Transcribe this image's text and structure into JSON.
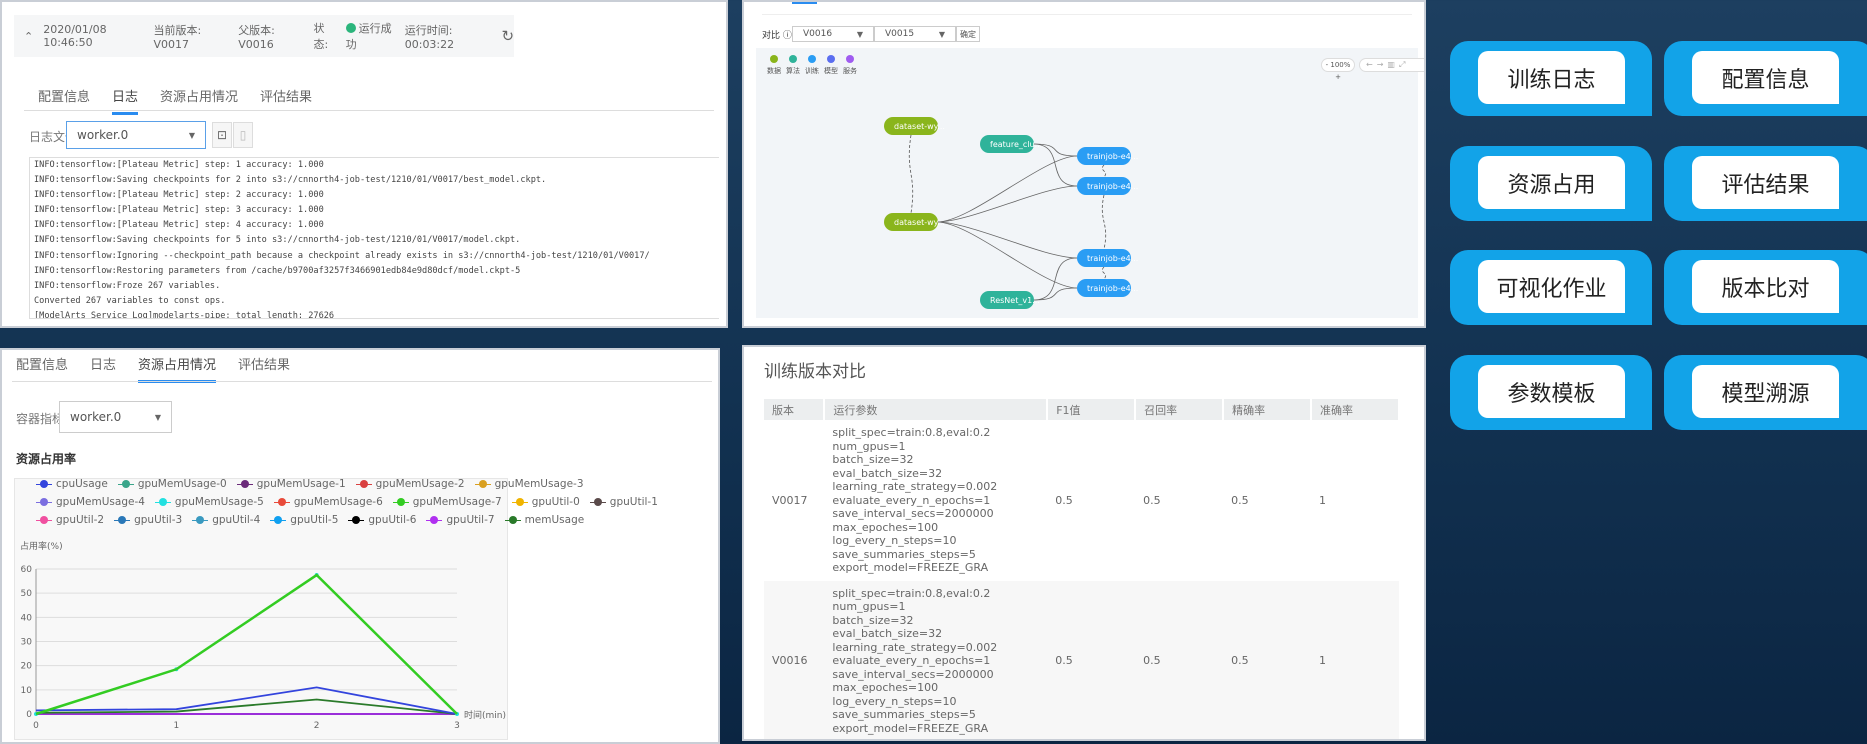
{
  "log_panel": {
    "header": {
      "datetime": "2020/01/08 10:46:50",
      "current_version": "当前版本: V0017",
      "parent_version": "父版本: V0016",
      "status_label": "状态:",
      "status_value": "运行成功",
      "runtime": "运行时间: 00:03:22"
    },
    "tabs": [
      "配置信息",
      "日志",
      "资源占用情况",
      "评估结果"
    ],
    "active_tab": 1,
    "log_file_label": "日志文件",
    "log_file_value": "worker.0",
    "lines": [
      "INFO:tensorflow:[Plateau Metric] step: 1 accuracy: 1.000",
      "INFO:tensorflow:Saving checkpoints for 2 into s3://cnnorth4-job-test/1210/01/V0017/best_model.ckpt.",
      "INFO:tensorflow:[Plateau Metric] step: 2 accuracy: 1.000",
      "INFO:tensorflow:[Plateau Metric] step: 3 accuracy: 1.000",
      "INFO:tensorflow:[Plateau Metric] step: 4 accuracy: 1.000",
      "INFO:tensorflow:Saving checkpoints for 5 into s3://cnnorth4-job-test/1210/01/V0017/model.ckpt.",
      "INFO:tensorflow:Ignoring --checkpoint_path because a checkpoint already exists in s3://cnnorth4-job-test/1210/01/V0017/",
      "INFO:tensorflow:Restoring parameters from /cache/b9700af3257f3466901edb84e9d80dcf/model.ckpt-5",
      "INFO:tensorflow:Froze 267 variables.",
      "Converted 267 variables to const ops.",
      "[ModelArts Service Log]modelarts-pipe: total length: 27626"
    ]
  },
  "lineage_panel": {
    "compare_label": "对比 ⓘ",
    "version_a": "V0016",
    "version_b": "V0015",
    "confirm": "确定",
    "legend": [
      {
        "label": "数据",
        "color": "#8ab51c"
      },
      {
        "label": "算法",
        "color": "#2fb39a"
      },
      {
        "label": "训练",
        "color": "#2a9df4"
      },
      {
        "label": "模型",
        "color": "#5b6ef0"
      },
      {
        "label": "服务",
        "color": "#a05cf0"
      }
    ],
    "zoom": "100%",
    "nodes": [
      {
        "id": "d1",
        "label": "dataset-wy...",
        "type": "data"
      },
      {
        "id": "d2",
        "label": "dataset-wy...",
        "type": "data"
      },
      {
        "id": "a1",
        "label": "feature_clu...",
        "type": "algo"
      },
      {
        "id": "a2",
        "label": "ResNet_v1...",
        "type": "algo"
      },
      {
        "id": "t1",
        "label": "trainjob-e4...",
        "type": "train"
      },
      {
        "id": "t2",
        "label": "trainjob-e4...",
        "type": "train"
      },
      {
        "id": "t3",
        "label": "trainjob-e4...",
        "type": "train"
      },
      {
        "id": "t4",
        "label": "trainjob-e4...",
        "type": "train"
      }
    ],
    "edges": [
      [
        "d2",
        "t1"
      ],
      [
        "d2",
        "t2"
      ],
      [
        "d2",
        "t3"
      ],
      [
        "d2",
        "t4"
      ],
      [
        "a1",
        "t1"
      ],
      [
        "a1",
        "t2"
      ],
      [
        "a2",
        "t3"
      ],
      [
        "a2",
        "t4"
      ]
    ],
    "dashed_edges": [
      [
        "d1",
        "d2"
      ],
      [
        "t1",
        "t2"
      ],
      [
        "t2",
        "t3"
      ],
      [
        "t3",
        "t4"
      ]
    ]
  },
  "resource_panel": {
    "tabs": [
      "配置信息",
      "日志",
      "资源占用情况",
      "评估结果"
    ],
    "active_tab": 2,
    "container_label": "容器指标",
    "container_value": "worker.0",
    "section_title": "资源占用率",
    "chart_data": {
      "type": "line",
      "ylabel": "占用率(%)",
      "xlabel": "时间(min)",
      "x": [
        0,
        1,
        2,
        3
      ],
      "xlim": [
        0,
        3
      ],
      "ylim": [
        0,
        60
      ],
      "yticks": [
        0,
        10,
        20,
        30,
        40,
        50,
        60
      ],
      "grid": true,
      "legend_position": "top",
      "series": [
        {
          "name": "cpuUsage",
          "color": "#3344dd",
          "values": [
            1.5,
            2,
            11,
            0
          ]
        },
        {
          "name": "gpuMemUsage-0",
          "color": "#3aa58a",
          "values": [
            0,
            0,
            0,
            0
          ]
        },
        {
          "name": "gpuMemUsage-1",
          "color": "#6b2a7a",
          "values": [
            0,
            0,
            0,
            0
          ]
        },
        {
          "name": "gpuMemUsage-2",
          "color": "#d94040",
          "values": [
            0,
            0,
            0,
            0
          ]
        },
        {
          "name": "gpuMemUsage-3",
          "color": "#d9a020",
          "values": [
            0,
            0,
            0,
            0
          ]
        },
        {
          "name": "gpuMemUsage-4",
          "color": "#7b6ee0",
          "values": [
            0,
            0,
            0,
            0
          ]
        },
        {
          "name": "gpuMemUsage-5",
          "color": "#22e0e0",
          "values": [
            0,
            18.5,
            57.5,
            0
          ]
        },
        {
          "name": "gpuMemUsage-6",
          "color": "#e84a3a",
          "values": [
            0,
            0,
            0,
            0
          ]
        },
        {
          "name": "gpuMemUsage-7",
          "color": "#33cc22",
          "values": [
            0,
            18.5,
            57.5,
            0
          ]
        },
        {
          "name": "gpuUtil-0",
          "color": "#f0b400",
          "values": [
            0,
            0,
            0,
            0
          ]
        },
        {
          "name": "gpuUtil-1",
          "color": "#5a4a4a",
          "values": [
            0,
            0,
            0,
            0
          ]
        },
        {
          "name": "gpuUtil-2",
          "color": "#f050a0",
          "values": [
            0,
            0,
            0,
            0
          ]
        },
        {
          "name": "gpuUtil-3",
          "color": "#2a78b8",
          "values": [
            0,
            0,
            0,
            0
          ]
        },
        {
          "name": "gpuUtil-4",
          "color": "#3a9ac0",
          "values": [
            0,
            0,
            0,
            0
          ]
        },
        {
          "name": "gpuUtil-5",
          "color": "#10a0f0",
          "values": [
            0,
            0,
            0,
            0
          ]
        },
        {
          "name": "gpuUtil-6",
          "color": "#000000",
          "values": [
            0,
            0,
            0,
            0
          ]
        },
        {
          "name": "gpuUtil-7",
          "color": "#b030f0",
          "values": [
            0,
            0,
            0,
            0
          ]
        },
        {
          "name": "memUsage",
          "color": "#2a7a2a",
          "values": [
            0.5,
            1,
            6,
            0
          ]
        }
      ]
    }
  },
  "compare_panel": {
    "title": "训练版本对比",
    "columns": [
      "版本",
      "运行参数",
      "F1值",
      "召回率",
      "精确率",
      "准确率"
    ],
    "rows": [
      {
        "version": "V0017",
        "params": [
          "split_spec=train:0.8,eval:0.2",
          "num_gpus=1",
          "batch_size=32",
          "eval_batch_size=32",
          "learning_rate_strategy=0.002",
          "evaluate_every_n_epochs=1",
          "save_interval_secs=2000000",
          "max_epoches=100",
          "log_every_n_steps=10",
          "save_summaries_steps=5",
          "export_model=FREEZE_GRA"
        ],
        "f1": "0.5",
        "recall": "0.5",
        "precision": "0.5",
        "accuracy": "1"
      },
      {
        "version": "V0016",
        "params": [
          "split_spec=train:0.8,eval:0.2",
          "num_gpus=1",
          "batch_size=32",
          "eval_batch_size=32",
          "learning_rate_strategy=0.002",
          "evaluate_every_n_epochs=1",
          "save_interval_secs=2000000",
          "max_epoches=100",
          "log_every_n_steps=10",
          "save_summaries_steps=5",
          "export_model=FREEZE_GRA"
        ],
        "f1": "0.5",
        "recall": "0.5",
        "precision": "0.5",
        "accuracy": "1"
      }
    ]
  },
  "feature_buttons": [
    "训练日志",
    "配置信息",
    "资源占用",
    "评估结果",
    "可视化作业",
    "版本比对",
    "参数模板",
    "模型溯源"
  ]
}
